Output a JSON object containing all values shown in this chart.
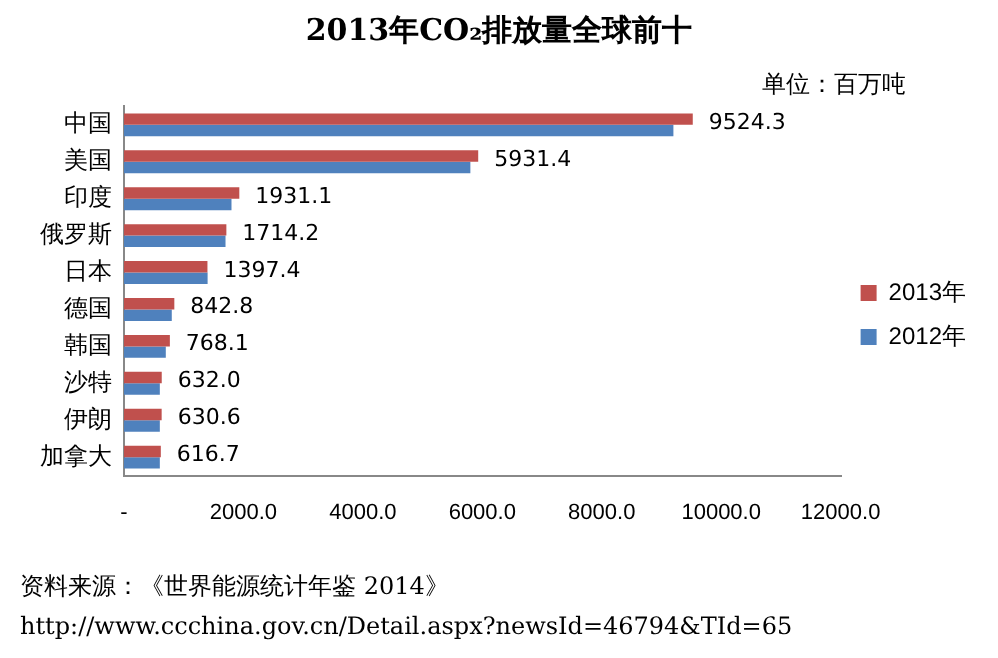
{
  "chart_data": {
    "type": "bar",
    "orientation": "horizontal",
    "title": "2013年CO₂排放量全球前十",
    "categories": [
      "中国",
      "美国",
      "印度",
      "俄罗斯",
      "日本",
      "德国",
      "韩国",
      "沙特",
      "伊朗",
      "加拿大"
    ],
    "series": [
      {
        "name": "2013年",
        "color": "#c0504d",
        "values": [
          9524.3,
          5931.4,
          1931.1,
          1714.2,
          1397.4,
          842.8,
          768.1,
          632.0,
          630.6,
          616.7
        ],
        "value_labels": [
          "9524.3",
          "5931.4",
          "1931.1",
          "1714.2",
          "1397.4",
          "842.8",
          "768.1",
          "632.0",
          "630.6",
          "616.7"
        ]
      },
      {
        "name": "2012年",
        "color": "#4f81bd",
        "values": [
          9200,
          5800,
          1800,
          1700,
          1400,
          800,
          700,
          600,
          600,
          600
        ]
      }
    ],
    "xlim": [
      0,
      12000
    ],
    "xticks": [
      {
        "value": 0,
        "label": "-"
      },
      {
        "value": 2000,
        "label": "2000.0"
      },
      {
        "value": 4000,
        "label": "4000.0"
      },
      {
        "value": 6000,
        "label": "6000.0"
      },
      {
        "value": 8000,
        "label": "8000.0"
      },
      {
        "value": 10000,
        "label": "10000.0"
      },
      {
        "value": 12000,
        "label": "12000.0"
      }
    ],
    "grid": false,
    "legend": "right",
    "annotations": [
      "单位：百万吨",
      "资料来源：《世界能源统计年鉴 2014》",
      "http://www.ccchina.gov.cn/Detail.aspx?newsId=46794&TId=65"
    ]
  }
}
